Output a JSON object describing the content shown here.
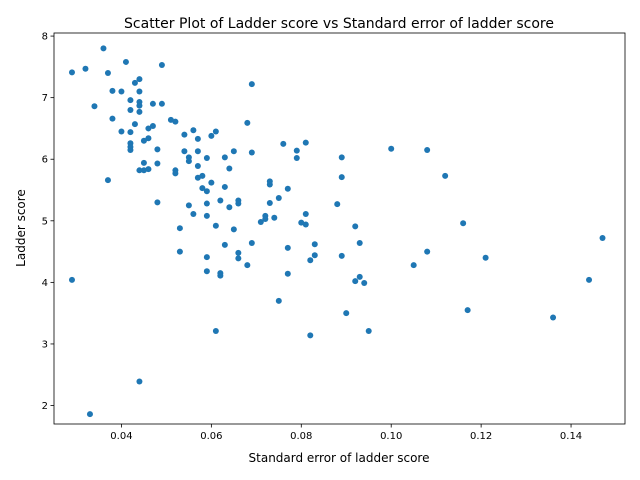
{
  "chart_data": {
    "type": "scatter",
    "title": "Scatter Plot of Ladder score vs Standard error of ladder score",
    "xlabel": "Standard error of ladder score",
    "ylabel": "Ladder score",
    "xlim": [
      0.025,
      0.152
    ],
    "ylim": [
      1.7,
      8.05
    ],
    "xticks": [
      0.04,
      0.06,
      0.08,
      0.1,
      0.12,
      0.14
    ],
    "xtick_labels": [
      "0.04",
      "0.06",
      "0.08",
      "0.10",
      "0.12",
      "0.14"
    ],
    "yticks": [
      2,
      3,
      4,
      5,
      6,
      7,
      8
    ],
    "ytick_labels": [
      "2",
      "3",
      "4",
      "5",
      "6",
      "7",
      "8"
    ],
    "grid": false,
    "legend": "none",
    "marker_color": "#1f77b4",
    "points": [
      [
        0.036,
        7.8
      ],
      [
        0.029,
        7.41
      ],
      [
        0.032,
        7.47
      ],
      [
        0.037,
        7.4
      ],
      [
        0.041,
        7.58
      ],
      [
        0.049,
        7.53
      ],
      [
        0.044,
        7.3
      ],
      [
        0.043,
        7.24
      ],
      [
        0.038,
        7.11
      ],
      [
        0.04,
        7.1
      ],
      [
        0.044,
        7.1
      ],
      [
        0.069,
        7.22
      ],
      [
        0.034,
        6.86
      ],
      [
        0.042,
        6.96
      ],
      [
        0.044,
        6.93
      ],
      [
        0.044,
        6.87
      ],
      [
        0.047,
        6.9
      ],
      [
        0.049,
        6.9
      ],
      [
        0.042,
        6.8
      ],
      [
        0.044,
        6.77
      ],
      [
        0.038,
        6.66
      ],
      [
        0.051,
        6.64
      ],
      [
        0.052,
        6.61
      ],
      [
        0.043,
        6.57
      ],
      [
        0.046,
        6.5
      ],
      [
        0.047,
        6.54
      ],
      [
        0.04,
        6.45
      ],
      [
        0.042,
        6.44
      ],
      [
        0.056,
        6.47
      ],
      [
        0.054,
        6.4
      ],
      [
        0.06,
        6.38
      ],
      [
        0.061,
        6.45
      ],
      [
        0.068,
        6.59
      ],
      [
        0.057,
        6.33
      ],
      [
        0.045,
        6.3
      ],
      [
        0.046,
        6.34
      ],
      [
        0.042,
        6.26
      ],
      [
        0.042,
        6.2
      ],
      [
        0.042,
        6.15
      ],
      [
        0.048,
        6.16
      ],
      [
        0.054,
        6.13
      ],
      [
        0.057,
        6.13
      ],
      [
        0.065,
        6.13
      ],
      [
        0.069,
        6.11
      ],
      [
        0.076,
        6.25
      ],
      [
        0.081,
        6.27
      ],
      [
        0.079,
        6.14
      ],
      [
        0.079,
        6.02
      ],
      [
        0.089,
        6.03
      ],
      [
        0.1,
        6.17
      ],
      [
        0.108,
        6.15
      ],
      [
        0.055,
        6.03
      ],
      [
        0.055,
        5.97
      ],
      [
        0.059,
        6.02
      ],
      [
        0.063,
        6.03
      ],
      [
        0.045,
        5.94
      ],
      [
        0.048,
        5.93
      ],
      [
        0.057,
        5.89
      ],
      [
        0.064,
        5.85
      ],
      [
        0.044,
        5.82
      ],
      [
        0.045,
        5.82
      ],
      [
        0.046,
        5.84
      ],
      [
        0.052,
        5.82
      ],
      [
        0.052,
        5.77
      ],
      [
        0.037,
        5.66
      ],
      [
        0.057,
        5.7
      ],
      [
        0.058,
        5.73
      ],
      [
        0.06,
        5.62
      ],
      [
        0.073,
        5.64
      ],
      [
        0.073,
        5.59
      ],
      [
        0.089,
        5.71
      ],
      [
        0.112,
        5.73
      ],
      [
        0.058,
        5.53
      ],
      [
        0.059,
        5.48
      ],
      [
        0.063,
        5.55
      ],
      [
        0.077,
        5.52
      ],
      [
        0.048,
        5.3
      ],
      [
        0.055,
        5.25
      ],
      [
        0.059,
        5.28
      ],
      [
        0.062,
        5.33
      ],
      [
        0.064,
        5.22
      ],
      [
        0.066,
        5.33
      ],
      [
        0.066,
        5.28
      ],
      [
        0.073,
        5.29
      ],
      [
        0.075,
        5.37
      ],
      [
        0.088,
        5.27
      ],
      [
        0.056,
        5.11
      ],
      [
        0.059,
        5.08
      ],
      [
        0.072,
        5.08
      ],
      [
        0.072,
        5.03
      ],
      [
        0.074,
        5.05
      ],
      [
        0.071,
        4.98
      ],
      [
        0.08,
        4.97
      ],
      [
        0.081,
        4.94
      ],
      [
        0.081,
        5.11
      ],
      [
        0.053,
        4.88
      ],
      [
        0.061,
        4.92
      ],
      [
        0.065,
        4.86
      ],
      [
        0.092,
        4.91
      ],
      [
        0.116,
        4.96
      ],
      [
        0.147,
        4.72
      ],
      [
        0.063,
        4.61
      ],
      [
        0.069,
        4.64
      ],
      [
        0.077,
        4.56
      ],
      [
        0.083,
        4.62
      ],
      [
        0.093,
        4.64
      ],
      [
        0.053,
        4.5
      ],
      [
        0.059,
        4.41
      ],
      [
        0.066,
        4.48
      ],
      [
        0.066,
        4.39
      ],
      [
        0.082,
        4.36
      ],
      [
        0.083,
        4.44
      ],
      [
        0.089,
        4.43
      ],
      [
        0.108,
        4.5
      ],
      [
        0.121,
        4.4
      ],
      [
        0.068,
        4.28
      ],
      [
        0.105,
        4.28
      ],
      [
        0.059,
        4.18
      ],
      [
        0.062,
        4.15
      ],
      [
        0.062,
        4.11
      ],
      [
        0.077,
        4.14
      ],
      [
        0.029,
        4.04
      ],
      [
        0.092,
        4.02
      ],
      [
        0.093,
        4.09
      ],
      [
        0.094,
        3.99
      ],
      [
        0.144,
        4.04
      ],
      [
        0.075,
        3.7
      ],
      [
        0.117,
        3.55
      ],
      [
        0.09,
        3.5
      ],
      [
        0.136,
        3.43
      ],
      [
        0.061,
        3.21
      ],
      [
        0.082,
        3.14
      ],
      [
        0.095,
        3.21
      ],
      [
        0.044,
        2.39
      ],
      [
        0.033,
        1.86
      ]
    ]
  }
}
